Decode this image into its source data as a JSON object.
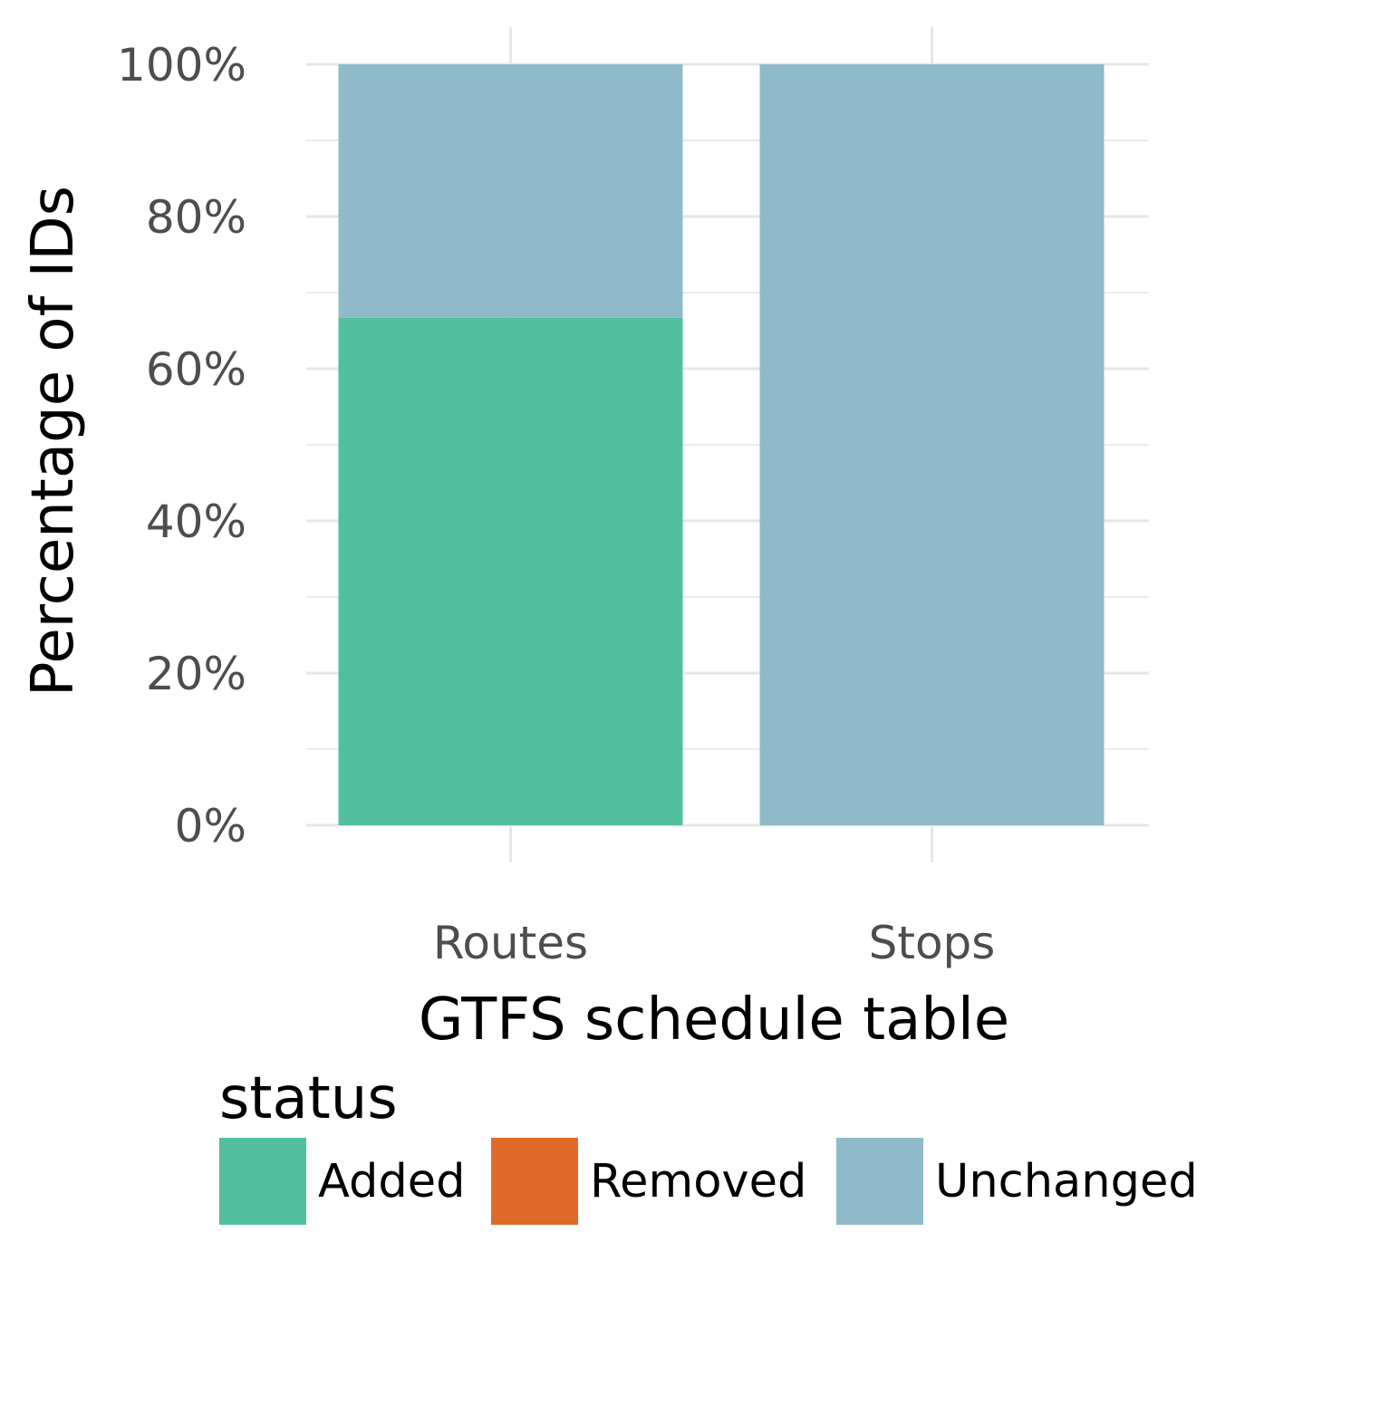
{
  "chart_data": {
    "type": "bar",
    "stacked": true,
    "categories": [
      "Routes",
      "Stops"
    ],
    "series": [
      {
        "name": "Added",
        "color": "#52BF9E",
        "values": [
          66.7,
          0
        ]
      },
      {
        "name": "Removed",
        "color": "#E06A27",
        "values": [
          0,
          0
        ]
      },
      {
        "name": "Unchanged",
        "color": "#8FBACA",
        "values": [
          33.3,
          100
        ]
      }
    ],
    "xlabel": "GTFS schedule table",
    "ylabel": "Percentage of IDs",
    "ylim": [
      0,
      100
    ],
    "yticks": [
      0,
      20,
      40,
      60,
      80,
      100
    ],
    "ytick_labels": [
      "0%",
      "20%",
      "40%",
      "60%",
      "80%",
      "100%"
    ],
    "grid": true,
    "legend": {
      "title": "status",
      "position": "bottom",
      "items": [
        {
          "label": "Added",
          "color": "#52BF9E"
        },
        {
          "label": "Removed",
          "color": "#E06A27"
        },
        {
          "label": "Unchanged",
          "color": "#8FBACA"
        }
      ]
    }
  }
}
